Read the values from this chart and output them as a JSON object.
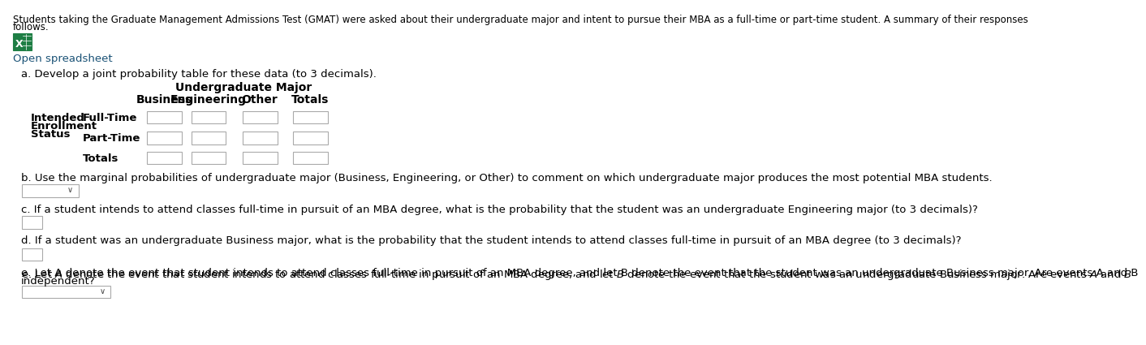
{
  "bg_color": "#ffffff",
  "header_line1": "Students taking the Graduate Management Admissions Test (GMAT) were asked about their undergraduate major and intent to pursue their MBA as a full-time or part-time student. A summary of their responses",
  "header_line2": "follows.",
  "open_spreadsheet": "Open spreadsheet",
  "section_a": "a. Develop a joint probability table for these data (to 3 decimals).",
  "table_header_main": "Undergraduate Major",
  "col_headers": [
    "Business",
    "Engineering",
    "Other",
    "Totals"
  ],
  "row_label_group_line1": "Intended",
  "row_label_group_line2": "Enrollment",
  "row_label_group_line3": "Status",
  "row_labels": [
    "Full-Time",
    "Part-Time",
    "Totals"
  ],
  "section_b": "b. Use the marginal probabilities of undergraduate major (Business, Engineering, or Other) to comment on which undergraduate major produces the most potential MBA students.",
  "section_c": "c. If a student intends to attend classes full-time in pursuit of an MBA degree, what is the probability that the student was an undergraduate Engineering major (to 3 decimals)?",
  "section_d": "d. If a student was an undergraduate Business major, what is the probability that the student intends to attend classes full-time in pursuit of an MBA degree (to 3 decimals)?",
  "section_e_line1": "e. Let A denote the event that student intends to attend classes full-time in pursuit of an MBA degree, and let B denote the event that the student was an undergraduate Business major. Are events A and B",
  "section_e_line2": "independent?",
  "text_color": "#000000",
  "link_color": "#1a5276",
  "box_border": "#aaaaaa",
  "font_size_header": 8.5,
  "font_size_body": 9.5,
  "font_size_table_header": 10,
  "icon_green": "#1e7e44",
  "icon_dark_green": "#165a30"
}
